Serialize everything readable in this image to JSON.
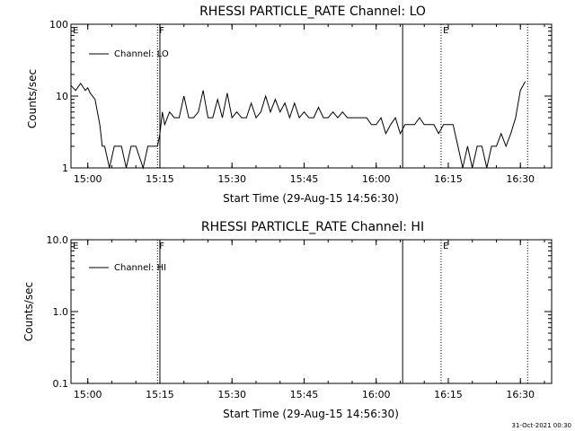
{
  "footer_date": "31-Oct-2021 00:30",
  "chart_data": [
    {
      "type": "line",
      "title": "RHESSI PARTICLE_RATE Channel: LO",
      "xlabel": "Start Time (29-Aug-15 14:56:30)",
      "ylabel": "Counts/sec",
      "yscale": "log",
      "ylim": [
        1,
        100
      ],
      "yticks": [
        1,
        10,
        100
      ],
      "ytick_labels": [
        "1",
        "10",
        "100"
      ],
      "xlim": [
        "14:56:30",
        "16:36:30"
      ],
      "xticks": [
        "15:00",
        "15:15",
        "15:30",
        "15:45",
        "16:00",
        "16:15",
        "16:30"
      ],
      "legend": "top-left",
      "series": [
        {
          "name": "Channel: LO",
          "color": "#000000",
          "x": [
            "14:56:30",
            "14:57:30",
            "14:58:30",
            "14:59:30",
            "15:00:00",
            "15:00:30",
            "15:01:30",
            "15:02:30",
            "15:03:00",
            "15:03:30",
            "15:04:30",
            "15:05:30",
            "15:06:00",
            "15:07:00",
            "15:08:00",
            "15:09:00",
            "15:10:00",
            "15:11:30",
            "15:12:30",
            "15:13:30",
            "15:14:00",
            "15:14:30",
            "15:15:00",
            "15:15:30",
            "15:16:00",
            "15:17:00",
            "15:18:00",
            "15:19:00",
            "15:20:00",
            "15:21:00",
            "15:22:00",
            "15:23:00",
            "15:24:00",
            "15:25:00",
            "15:26:00",
            "15:27:00",
            "15:28:00",
            "15:29:00",
            "15:30:00",
            "15:31:00",
            "15:32:00",
            "15:33:00",
            "15:34:00",
            "15:35:00",
            "15:36:00",
            "15:37:00",
            "15:38:00",
            "15:39:00",
            "15:40:00",
            "15:41:00",
            "15:42:00",
            "15:43:00",
            "15:44:00",
            "15:45:00",
            "15:46:00",
            "15:47:00",
            "15:48:00",
            "15:49:00",
            "15:50:00",
            "15:51:00",
            "15:52:00",
            "15:53:00",
            "15:54:00",
            "15:55:00",
            "15:56:00",
            "15:57:00",
            "15:58:00",
            "15:59:00",
            "16:00:00",
            "16:01:00",
            "16:02:00",
            "16:03:00",
            "16:04:00",
            "16:05:00",
            "16:06:00",
            "16:07:00",
            "16:08:00",
            "16:09:00",
            "16:10:00",
            "16:11:00",
            "16:12:00",
            "16:13:00",
            "16:14:00",
            "16:15:00",
            "16:16:00",
            "16:17:00",
            "16:18:00",
            "16:19:00",
            "16:20:00",
            "16:21:00",
            "16:22:00",
            "16:23:00",
            "16:24:00",
            "16:25:00",
            "16:26:00",
            "16:27:00",
            "16:28:00",
            "16:29:00",
            "16:30:00",
            "16:31:00"
          ],
          "y": [
            14,
            12,
            15,
            12,
            13,
            11,
            9,
            4,
            2,
            2,
            1,
            2,
            2,
            2,
            1,
            2,
            2,
            1,
            2,
            2,
            2,
            2,
            3,
            6,
            4,
            6,
            5,
            5,
            10,
            5,
            5,
            6,
            12,
            5,
            5,
            9,
            5,
            11,
            5,
            6,
            5,
            5,
            8,
            5,
            6,
            10,
            6,
            9,
            6,
            8,
            5,
            8,
            5,
            6,
            5,
            5,
            7,
            5,
            5,
            6,
            5,
            6,
            5,
            5,
            5,
            5,
            5,
            4,
            4,
            5,
            3,
            4,
            5,
            3,
            4,
            4,
            4,
            5,
            4,
            4,
            4,
            3,
            4,
            4,
            4,
            2,
            1,
            2,
            1,
            2,
            2,
            1,
            2,
            2,
            3,
            2,
            3,
            5,
            12,
            16
          ]
        }
      ]
    },
    {
      "type": "line",
      "title": "RHESSI PARTICLE_RATE Channel: HI",
      "xlabel": "Start Time (29-Aug-15 14:56:30)",
      "ylabel": "Counts/sec",
      "yscale": "log",
      "ylim": [
        0.1,
        10
      ],
      "yticks": [
        0.1,
        1,
        10
      ],
      "ytick_labels": [
        "0.1",
        "1.0",
        "10.0"
      ],
      "xlim": [
        "14:56:30",
        "16:36:30"
      ],
      "xticks": [
        "15:00",
        "15:15",
        "15:30",
        "15:45",
        "16:00",
        "16:15",
        "16:30"
      ],
      "legend": "top-left",
      "series": [
        {
          "name": "Channel: HI",
          "color": "#000000",
          "x": [],
          "y": []
        }
      ]
    }
  ],
  "markers": [
    {
      "time": "14:56:30",
      "label": "E",
      "style": "none"
    },
    {
      "time": "15:14:30",
      "label": "F",
      "style": "dotted"
    },
    {
      "time": "15:15:00",
      "label": "",
      "style": "solid"
    },
    {
      "time": "16:05:30",
      "label": "",
      "style": "solid"
    },
    {
      "time": "16:13:30",
      "label": "E",
      "style": "dotted"
    },
    {
      "time": "16:31:30",
      "label": "",
      "style": "dotted"
    }
  ]
}
